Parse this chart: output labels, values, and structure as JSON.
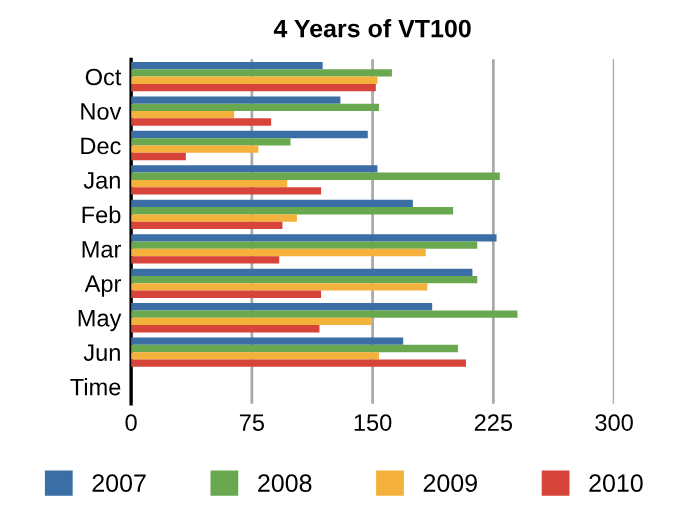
{
  "chart_data": {
    "type": "bar",
    "orientation": "horizontal",
    "title": "4 Years of VT100",
    "categories": [
      "Oct",
      "Nov",
      "Dec",
      "Jan",
      "Feb",
      "Mar",
      "Apr",
      "May",
      "Jun",
      "Time"
    ],
    "series": [
      {
        "name": "2007",
        "color": "#3a6ea5",
        "values": [
          119,
          130,
          147,
          153,
          175,
          227,
          212,
          187,
          169,
          null
        ]
      },
      {
        "name": "2008",
        "color": "#6aa84f",
        "values": [
          162,
          154,
          99,
          229,
          200,
          215,
          215,
          240,
          203,
          null
        ]
      },
      {
        "name": "2009",
        "color": "#f4b13b",
        "values": [
          153,
          64,
          79,
          97,
          103,
          183,
          184,
          149,
          154,
          null
        ]
      },
      {
        "name": "2010",
        "color": "#d6443a",
        "values": [
          152,
          87,
          34,
          118,
          94,
          92,
          118,
          117,
          208,
          null
        ]
      }
    ],
    "xlim": [
      0,
      300
    ],
    "xticks": [
      0,
      75,
      150,
      225,
      300
    ],
    "grid": "x",
    "legend": "bottom"
  }
}
